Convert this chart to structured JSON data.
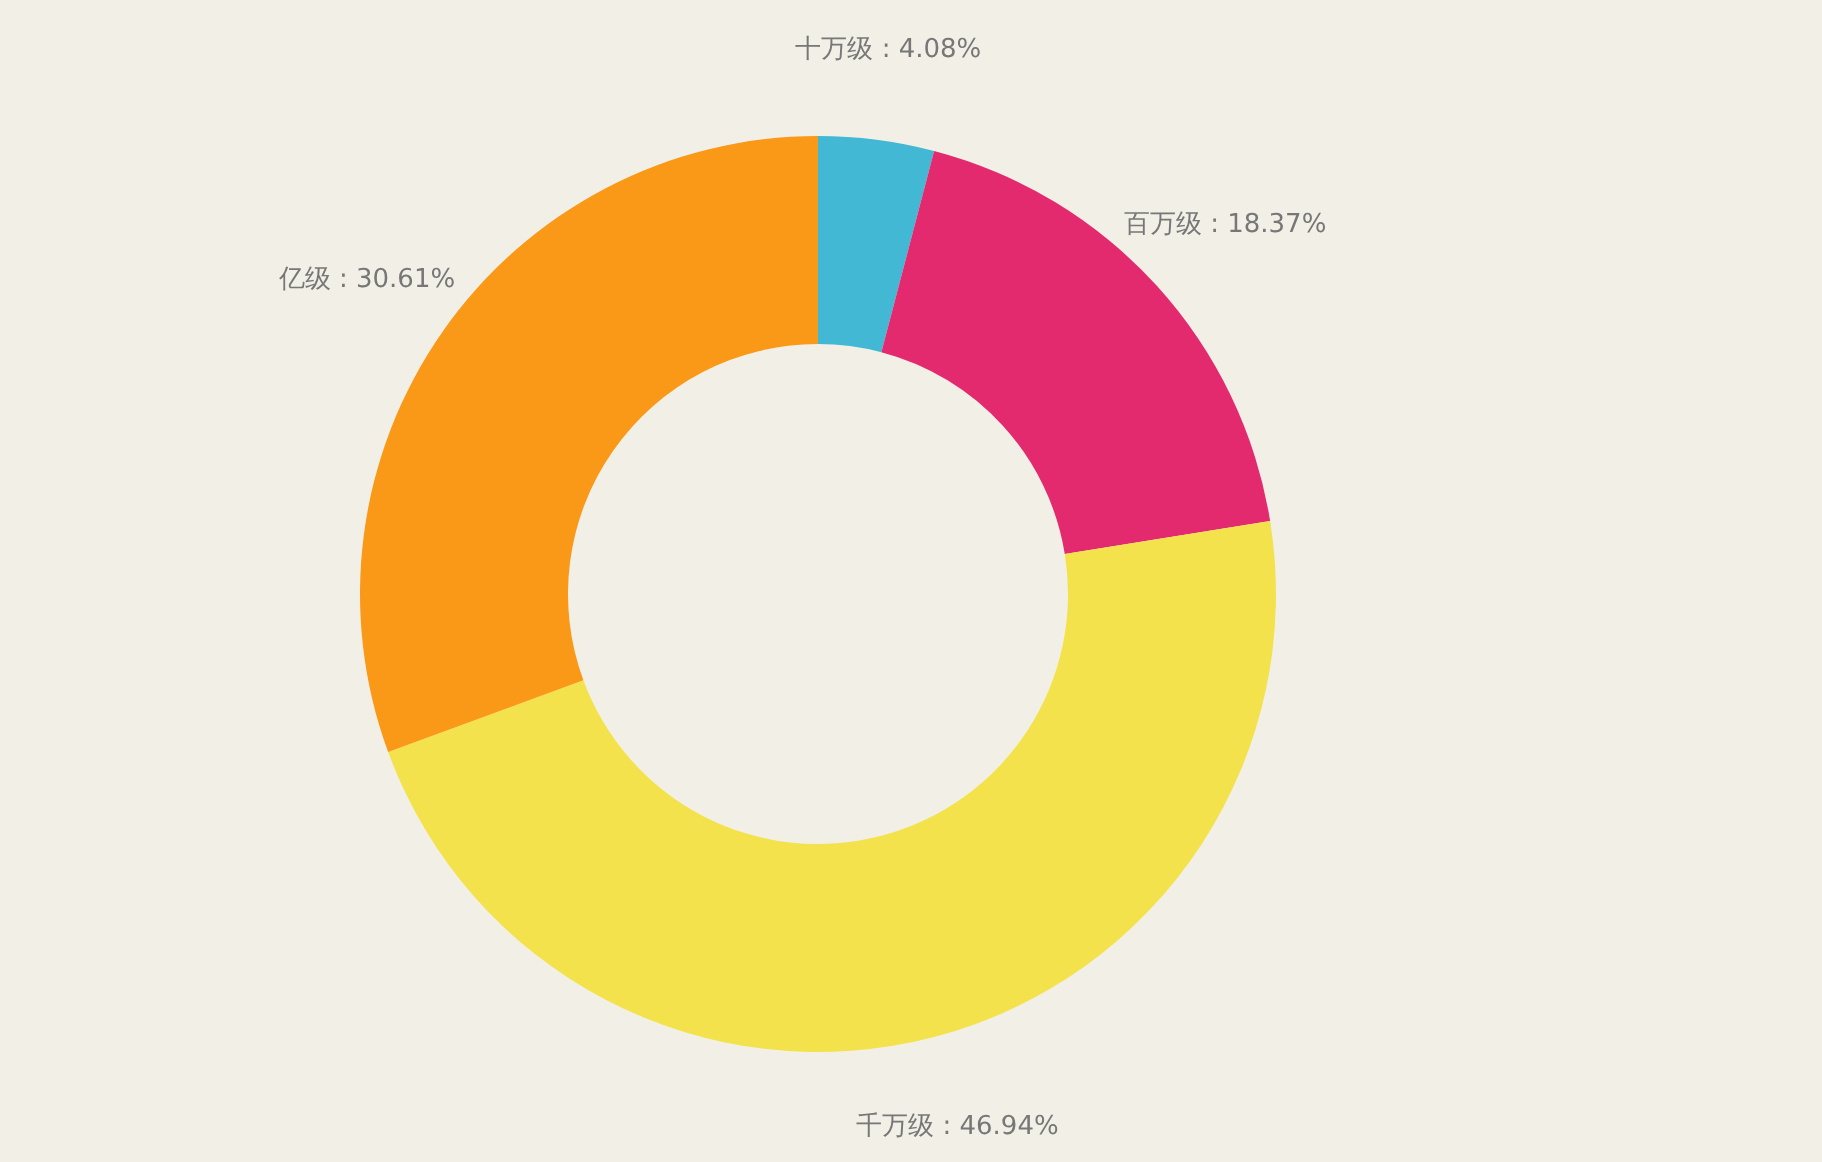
{
  "chart_data": {
    "type": "donut",
    "categories": [
      "十万级",
      "百万级",
      "千万级",
      "亿级"
    ],
    "values": [
      4.08,
      18.37,
      46.94,
      30.61
    ],
    "colors": [
      "#42b8d5",
      "#e32a6f",
      "#f3e24c",
      "#fa9817"
    ],
    "value_labels": [
      "4.08%",
      "18.37%",
      "46.94%",
      "30.61%"
    ],
    "legend": false
  }
}
